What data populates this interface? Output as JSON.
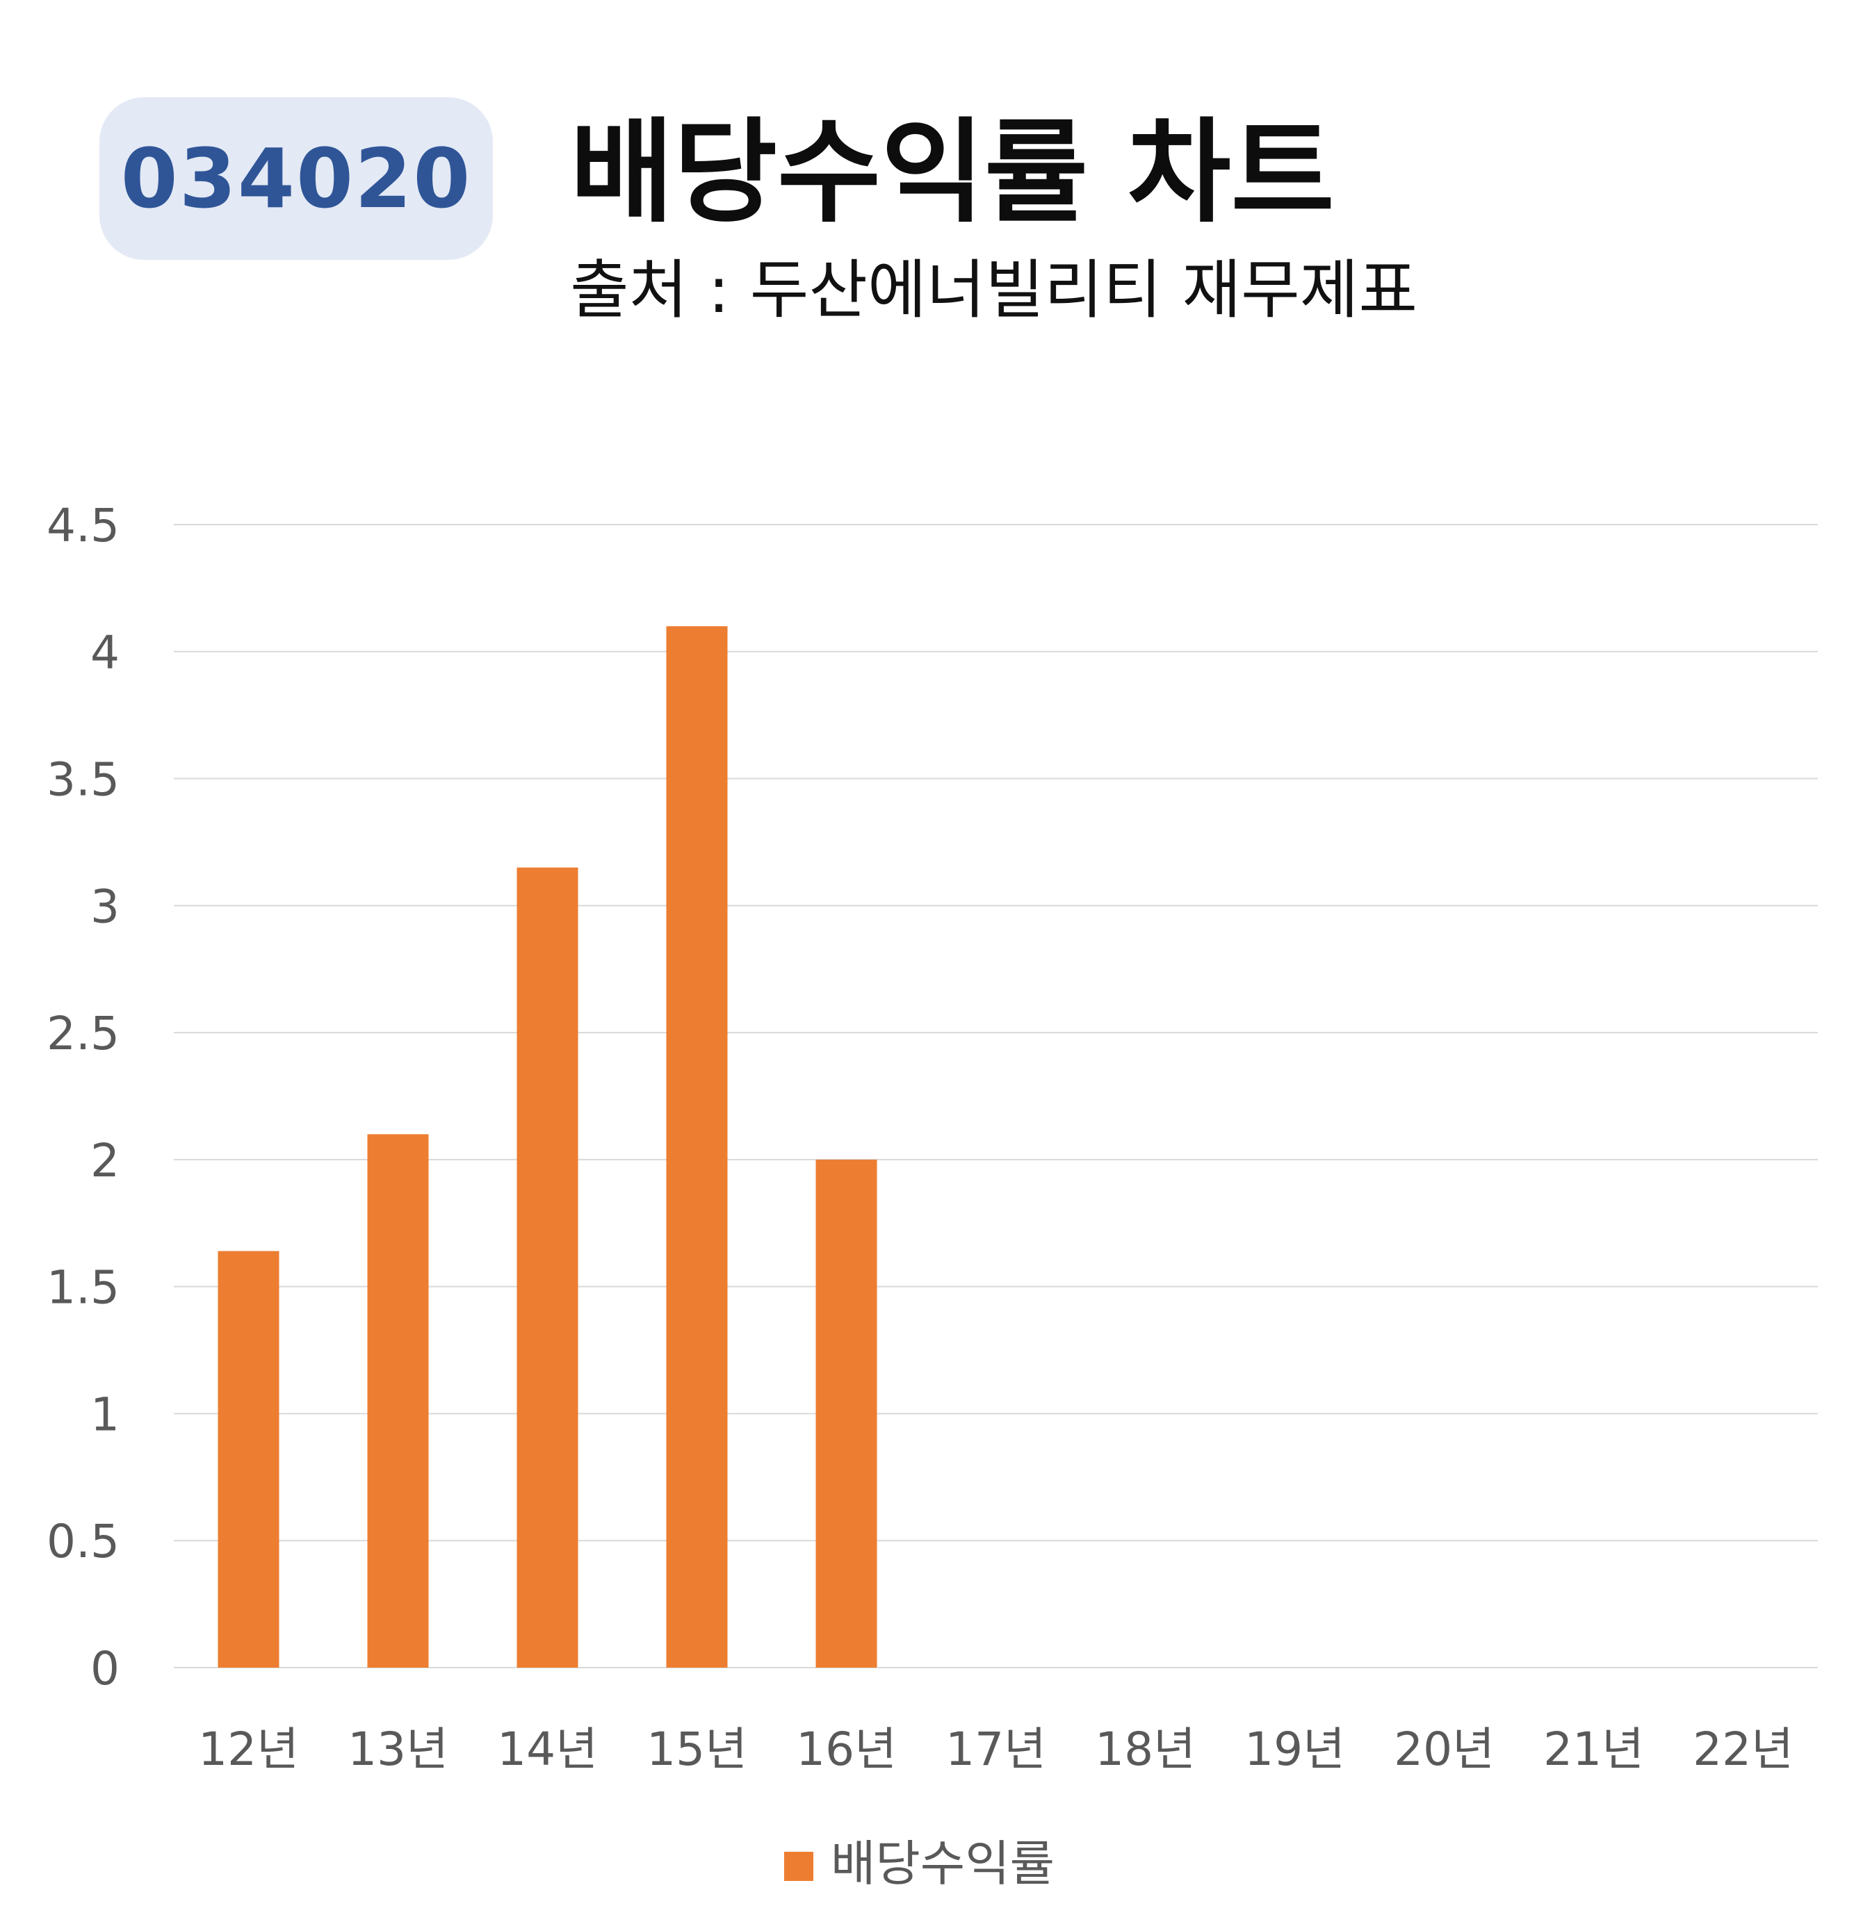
{
  "badge": {
    "ticker": "034020"
  },
  "header": {
    "title": "배당수익률 차트",
    "subtitle": "출처 : 두산에너빌리티 재무제표"
  },
  "colors": {
    "bar": "#ED7D31",
    "badge_bg": "#E3E9F5",
    "badge_text": "#2F5597",
    "grid": "#D9D9D9",
    "axis_text": "#595959"
  },
  "chart_data": {
    "type": "bar",
    "title": "배당수익률 차트",
    "subtitle": "출처 : 두산에너빌리티 재무제표",
    "categories": [
      "12년",
      "13년",
      "14년",
      "15년",
      "16년",
      "17년",
      "18년",
      "19년",
      "20년",
      "21년",
      "22년"
    ],
    "series": [
      {
        "name": "배당수익률",
        "values": [
          1.64,
          2.1,
          3.15,
          4.1,
          2.0,
          null,
          null,
          null,
          null,
          null,
          null
        ]
      }
    ],
    "ylim": [
      0,
      4.5
    ],
    "yticks": [
      0,
      0.5,
      1,
      1.5,
      2,
      2.5,
      3,
      3.5,
      4,
      4.5
    ],
    "ytick_labels": [
      "0",
      "0.5",
      "1",
      "1.5",
      "2",
      "2.5",
      "3",
      "3.5",
      "4",
      "4.5"
    ],
    "grid": true,
    "legend": "bottom-center",
    "xlabel": "",
    "ylabel": ""
  }
}
